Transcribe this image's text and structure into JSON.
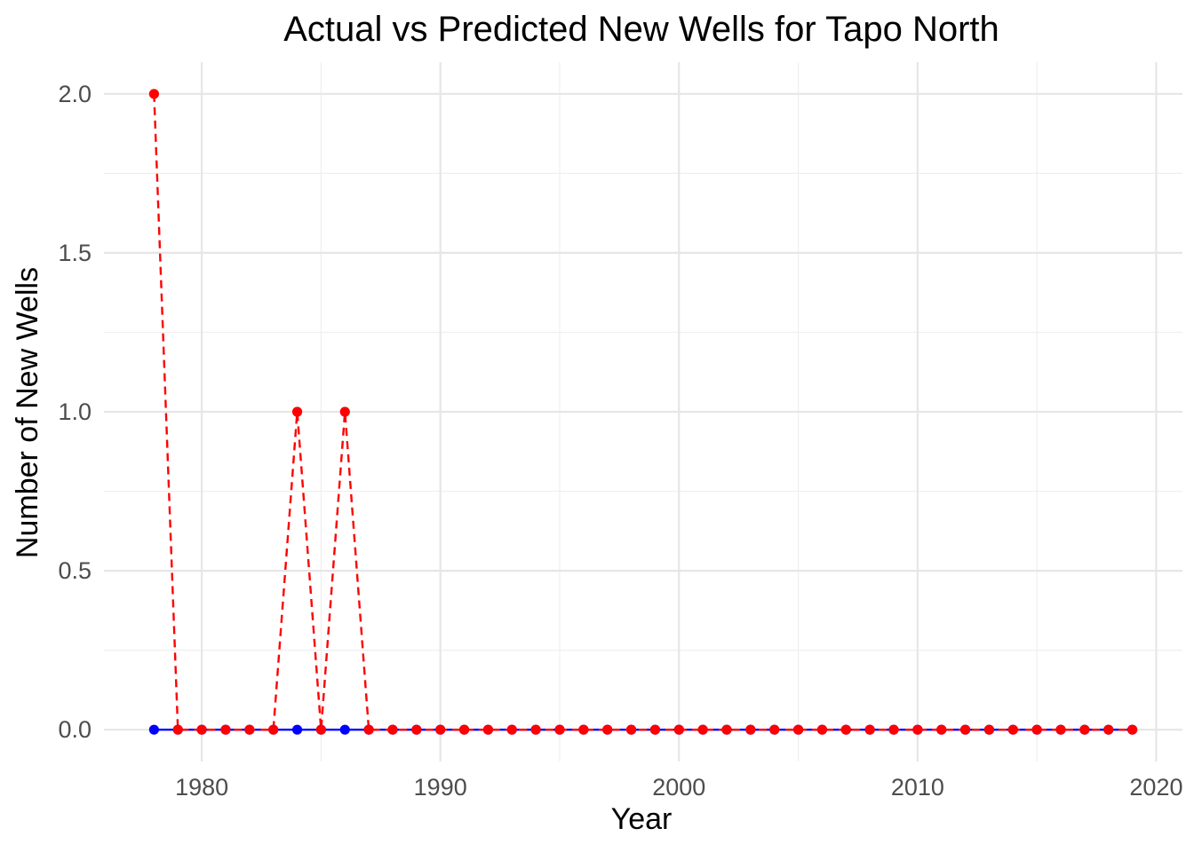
{
  "chart_data": {
    "type": "line",
    "title": "Actual vs Predicted New Wells for Tapo  North",
    "xlabel": "Year",
    "ylabel": "Number of New Wells",
    "xlim": [
      1975.9,
      2021.1
    ],
    "ylim": [
      -0.1,
      2.1
    ],
    "x_ticks": [
      1980,
      1990,
      2000,
      2010,
      2020
    ],
    "x_tick_labels": [
      "1980",
      "1990",
      "2000",
      "2010",
      "2020"
    ],
    "x_minor_ticks": [
      1985,
      1995,
      2005,
      2015
    ],
    "y_ticks": [
      0,
      0.5,
      1,
      1.5,
      2
    ],
    "y_tick_labels": [
      "0.0",
      "0.5",
      "1.0",
      "1.5",
      "2.0"
    ],
    "y_minor_ticks": [
      0.25,
      0.75,
      1.25,
      1.75
    ],
    "grid": true,
    "legend": "none",
    "x": [
      1978,
      1979,
      1980,
      1981,
      1982,
      1983,
      1984,
      1985,
      1986,
      1987,
      1988,
      1989,
      1990,
      1991,
      1992,
      1993,
      1994,
      1995,
      1996,
      1997,
      1998,
      1999,
      2000,
      2001,
      2002,
      2003,
      2004,
      2005,
      2006,
      2007,
      2008,
      2009,
      2010,
      2011,
      2012,
      2013,
      2014,
      2015,
      2016,
      2017,
      2018,
      2019
    ],
    "series": [
      {
        "color": "#0000ff",
        "line_style": "solid",
        "values": [
          0,
          0,
          0,
          0,
          0,
          0,
          0,
          0,
          0,
          0,
          0,
          0,
          0,
          0,
          0,
          0,
          0,
          0,
          0,
          0,
          0,
          0,
          0,
          0,
          0,
          0,
          0,
          0,
          0,
          0,
          0,
          0,
          0,
          0,
          0,
          0,
          0,
          0,
          0,
          0,
          0,
          0
        ]
      },
      {
        "color": "#ff0000",
        "line_style": "dashed",
        "values": [
          2,
          0,
          0,
          0,
          0,
          0,
          1,
          0,
          1,
          0,
          0,
          0,
          0,
          0,
          0,
          0,
          0,
          0,
          0,
          0,
          0,
          0,
          0,
          0,
          0,
          0,
          0,
          0,
          0,
          0,
          0,
          0,
          0,
          0,
          0,
          0,
          0,
          0,
          0,
          0,
          0,
          0
        ]
      }
    ]
  }
}
